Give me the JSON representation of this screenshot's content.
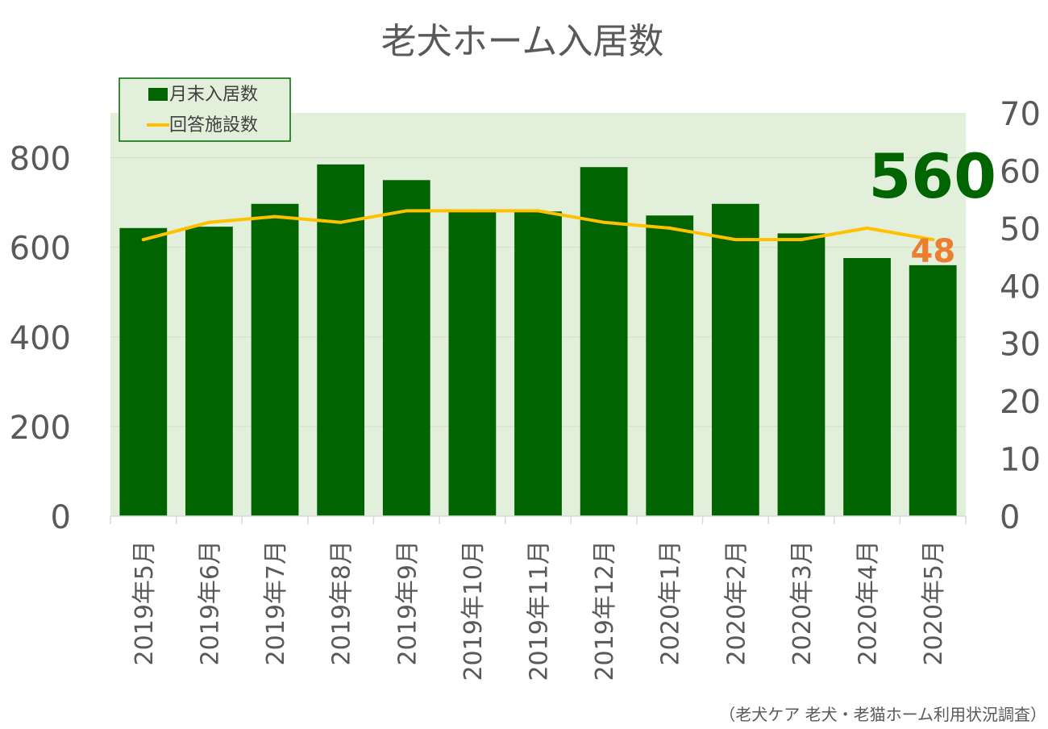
{
  "chart_data": {
    "type": "bar+line",
    "title": "老犬ホーム入居数",
    "categories": [
      "2019年5月",
      "2019年6月",
      "2019年7月",
      "2019年8月",
      "2019年9月",
      "2019年10月",
      "2019年11月",
      "2019年12月",
      "2020年1月",
      "2020年2月",
      "2020年3月",
      "2020年4月",
      "2020年5月"
    ],
    "series": [
      {
        "name": "月末入居数",
        "type": "bar",
        "axis": "left",
        "color": "#006400",
        "values": [
          643,
          646,
          697,
          785,
          750,
          680,
          680,
          779,
          671,
          697,
          631,
          576,
          560
        ]
      },
      {
        "name": "回答施設数",
        "type": "line",
        "axis": "right",
        "color": "#FFC000",
        "values": [
          48,
          51,
          52,
          51,
          53,
          53,
          53,
          51,
          50,
          48,
          48,
          50,
          48
        ]
      }
    ],
    "y_left": {
      "min": 0,
      "max": 900,
      "ticks": [
        0,
        200,
        400,
        600,
        800
      ]
    },
    "y_right": {
      "min": 0,
      "max": 70,
      "ticks": [
        0,
        10,
        20,
        30,
        40,
        50,
        60,
        70
      ]
    },
    "highlight_bar_label": "560",
    "highlight_line_label": "48",
    "legend_position": "top-left",
    "plot_background": "#E2EFDA",
    "grid": true
  },
  "source_note": "（老犬ケア 老犬・老猫ホーム利用状況調査）"
}
